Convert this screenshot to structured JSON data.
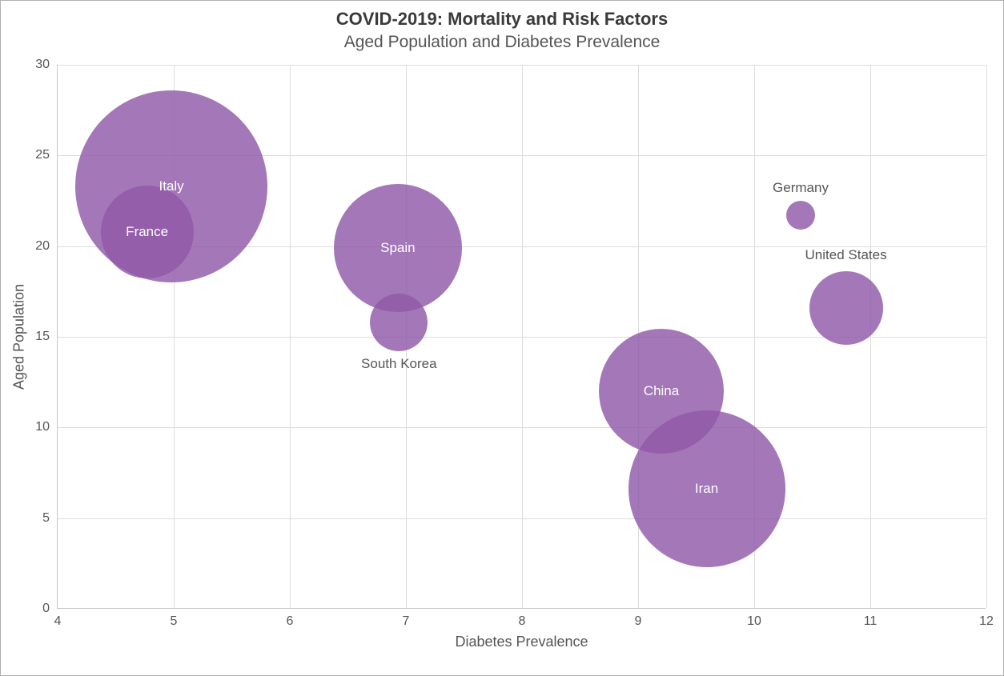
{
  "title": "COVID-2019: Mortality and Risk Factors",
  "title_fontsize": 22,
  "subtitle": "Aged Population and Diabetes Prevalence",
  "subtitle_fontsize": 21,
  "chart": {
    "type": "bubble",
    "xlabel": "Diabetes Prevalence",
    "ylabel": "Aged Population",
    "label_fontsize": 18,
    "tick_fontsize": 16,
    "xlim": [
      4,
      12
    ],
    "ylim": [
      0,
      30
    ],
    "x_ticks": [
      4,
      5,
      6,
      7,
      8,
      9,
      10,
      11,
      12
    ],
    "y_ticks": [
      0,
      5,
      10,
      15,
      20,
      25,
      30
    ],
    "grid_color": "#dcdcdc",
    "axis_color": "#c8c8c8",
    "background_color": "#ffffff",
    "bubble_color": "#9059a8",
    "bubble_opacity": 0.82,
    "label_color_outside": "#555555",
    "label_color_inside": "#ffffff",
    "data": [
      {
        "label": "Italy",
        "x": 4.98,
        "y": 23.3,
        "r": 120,
        "label_pos": "inside"
      },
      {
        "label": "France",
        "x": 4.77,
        "y": 20.8,
        "r": 58,
        "label_pos": "inside"
      },
      {
        "label": "Spain",
        "x": 6.93,
        "y": 19.9,
        "r": 80,
        "label_pos": "inside"
      },
      {
        "label": "South Korea",
        "x": 6.94,
        "y": 15.8,
        "r": 36,
        "label_pos": "below"
      },
      {
        "label": "Germany",
        "x": 10.4,
        "y": 21.7,
        "r": 18,
        "label_pos": "above"
      },
      {
        "label": "United States",
        "x": 10.79,
        "y": 16.6,
        "r": 46,
        "label_pos": "above-wide"
      },
      {
        "label": "China",
        "x": 9.2,
        "y": 12.0,
        "r": 78,
        "label_pos": "inside"
      },
      {
        "label": "Iran",
        "x": 9.59,
        "y": 6.6,
        "r": 98,
        "label_pos": "inside"
      }
    ]
  }
}
